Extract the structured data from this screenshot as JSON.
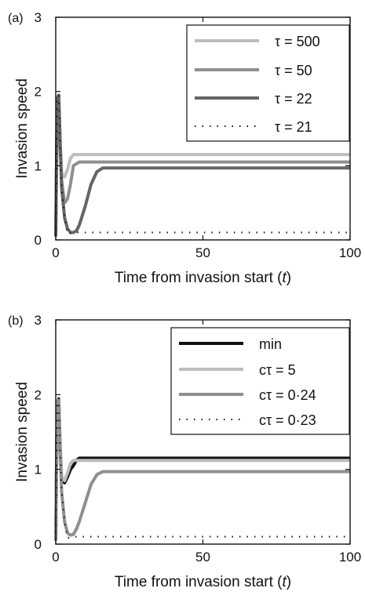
{
  "chart_data": [
    {
      "panel_label": "(a)",
      "type": "line",
      "xlabel": "Time from invasion start (",
      "xlabel_var": "t",
      "xlabel_close": ")",
      "ylabel": "Invasion speed",
      "xlim": [
        0,
        100
      ],
      "ylim": [
        0,
        3
      ],
      "xticks": [
        "0",
        "50",
        "100"
      ],
      "yticks": [
        "0",
        "1",
        "2",
        "3"
      ],
      "grid": false,
      "legend_position": "top-right",
      "series": [
        {
          "name": "τ = 500",
          "color": "#bdbdbd",
          "style": "solid",
          "x": [
            0,
            0.5,
            1,
            1.5,
            2,
            3,
            4,
            5,
            6,
            8,
            10,
            100
          ],
          "y": [
            0.05,
            1.9,
            1.95,
            1.4,
            0.9,
            0.85,
            0.95,
            1.1,
            1.15,
            1.15,
            1.15,
            1.15
          ]
        },
        {
          "name": "τ = 50",
          "color": "#8f8f8f",
          "style": "solid",
          "x": [
            0,
            0.5,
            1,
            1.5,
            2,
            3,
            4,
            5,
            6,
            8,
            10,
            100
          ],
          "y": [
            0.05,
            1.9,
            1.95,
            1.3,
            0.8,
            0.5,
            0.55,
            0.75,
            1.0,
            1.05,
            1.05,
            1.05
          ]
        },
        {
          "name": "τ = 22",
          "color": "#656565",
          "style": "solid",
          "x": [
            0,
            0.5,
            1,
            1.5,
            2,
            3,
            4,
            5,
            6,
            7,
            8,
            10,
            12,
            14,
            16,
            18,
            20,
            100
          ],
          "y": [
            0.05,
            1.9,
            1.95,
            1.3,
            0.7,
            0.3,
            0.15,
            0.1,
            0.1,
            0.12,
            0.2,
            0.45,
            0.75,
            0.92,
            0.97,
            0.97,
            0.97,
            0.97
          ]
        },
        {
          "name": "τ = 21",
          "color": "#111111",
          "style": "dotted",
          "x": [
            0,
            0.5,
            1,
            1.5,
            2,
            3,
            4,
            6,
            8,
            10,
            100
          ],
          "y": [
            0.05,
            1.9,
            1.95,
            1.3,
            0.7,
            0.3,
            0.08,
            0.1,
            0.1,
            0.1,
            0.1
          ]
        }
      ]
    },
    {
      "panel_label": "(b)",
      "type": "line",
      "xlabel": "Time from invasion start (",
      "xlabel_var": "t",
      "xlabel_close": ")",
      "ylabel": "Invasion speed",
      "xlim": [
        0,
        100
      ],
      "ylim": [
        0,
        3
      ],
      "xticks": [
        "0",
        "50",
        "100"
      ],
      "yticks": [
        "0",
        "1",
        "2",
        "3"
      ],
      "grid": false,
      "legend_position": "top-right",
      "series": [
        {
          "name": "min",
          "color": "#111111",
          "style": "solid",
          "x": [
            0,
            0.5,
            1,
            1.5,
            2,
            3,
            4,
            5,
            6,
            7,
            8,
            100
          ],
          "y": [
            0.05,
            1.9,
            1.95,
            1.3,
            0.85,
            0.82,
            0.9,
            1.0,
            1.05,
            1.12,
            1.15,
            1.15
          ]
        },
        {
          "name": "cτ = 5",
          "color": "#bdbdbd",
          "style": "solid",
          "x": [
            0,
            0.5,
            1,
            1.5,
            2,
            3,
            4,
            5,
            6,
            8,
            10,
            100
          ],
          "y": [
            0.05,
            1.9,
            1.95,
            1.4,
            0.9,
            0.85,
            0.95,
            1.08,
            1.12,
            1.12,
            1.12,
            1.12
          ]
        },
        {
          "name": "cτ = 0·24",
          "color": "#8f8f8f",
          "style": "solid",
          "x": [
            0,
            0.5,
            1,
            1.5,
            2,
            3,
            4,
            5,
            6,
            7,
            8,
            10,
            12,
            14,
            16,
            18,
            20,
            100
          ],
          "y": [
            0.05,
            1.9,
            1.95,
            1.3,
            0.7,
            0.3,
            0.15,
            0.12,
            0.13,
            0.2,
            0.3,
            0.55,
            0.8,
            0.93,
            0.97,
            0.97,
            0.97,
            0.97
          ]
        },
        {
          "name": "cτ = 0·23",
          "color": "#111111",
          "style": "dotted",
          "x": [
            0,
            0.5,
            1,
            1.5,
            2,
            3,
            4,
            6,
            8,
            10,
            100
          ],
          "y": [
            0.05,
            1.9,
            1.95,
            1.3,
            0.7,
            0.3,
            0.08,
            0.1,
            0.1,
            0.1,
            0.1
          ]
        }
      ]
    }
  ]
}
